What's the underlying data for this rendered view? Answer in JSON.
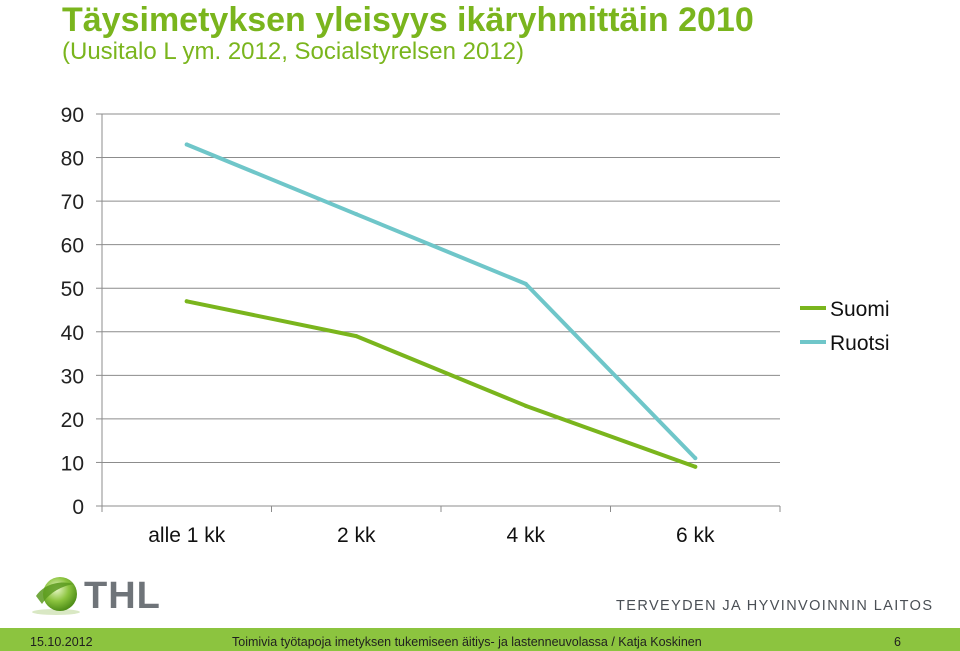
{
  "header": {
    "title": "Täysimetyksen yleisyys ikäryhmittäin 2010",
    "subtitle": "(Uusitalo L ym. 2012, Socialstyrelsen 2012)"
  },
  "chart_data": {
    "type": "line",
    "categories": [
      "alle 1 kk",
      "2 kk",
      "4 kk",
      "6 kk"
    ],
    "series": [
      {
        "name": "Suomi",
        "values": [
          47,
          39,
          23,
          9
        ],
        "color": "#7ab51d"
      },
      {
        "name": "Ruotsi",
        "values": [
          83,
          67,
          51,
          11
        ],
        "color": "#6fc6c9"
      }
    ],
    "ylim": [
      0,
      90
    ],
    "yticks": [
      "0",
      "10",
      "20",
      "30",
      "40",
      "50",
      "60",
      "70",
      "80",
      "90"
    ],
    "grid": true,
    "legend": "right"
  },
  "branding": {
    "logo_text": "THL",
    "org_name": "TERVEYDEN JA HYVINVOINNIN LAITOS"
  },
  "footer": {
    "date": "15.10.2012",
    "text": "Toimivia työtapoja imetyksen tukemiseen äitiys- ja lastenneuvolassa / Katja Koskinen",
    "page": "6"
  }
}
